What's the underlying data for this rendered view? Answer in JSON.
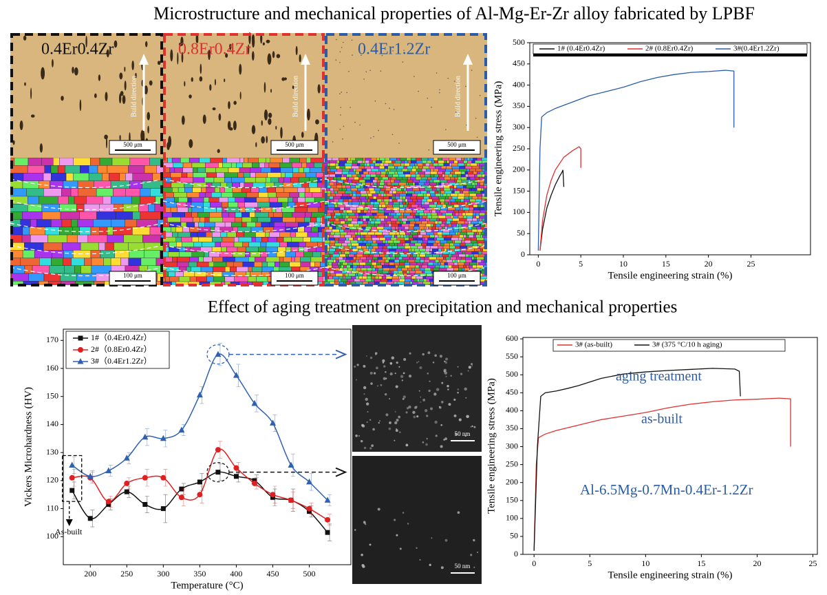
{
  "titles": [
    "Microstructure and mechanical properties of Al-Mg-Er-Zr alloy fabricated by LPBF",
    "Effect of aging  treatment on precipitation and mechanical properties"
  ],
  "micrographs": [
    {
      "label": "0.4Er0.4Zr",
      "build_direction": "Build direction",
      "scale_optical": "500 μm",
      "scale_ebsd": "100 μm"
    },
    {
      "label": "0.8Er0.4Zr",
      "build_direction": "Build direction",
      "scale_optical": "500 μm",
      "scale_ebsd": "100 μm"
    },
    {
      "label": "0.4Er1.2Zr",
      "build_direction": "Build direction",
      "scale_optical": "500 μm",
      "scale_ebsd": "100 μm"
    }
  ],
  "tem": [
    {
      "scale": "50 nm"
    },
    {
      "scale": "50 nm"
    }
  ],
  "chart_data": [
    {
      "type": "line",
      "xlabel": "Tensile engineering strain (%)",
      "ylabel": "Tensile engineering stress (MPa)",
      "xlim": [
        -1,
        32
      ],
      "ylim": [
        0,
        500
      ],
      "xticks": [
        0,
        5,
        10,
        15,
        20,
        25
      ],
      "yticks": [
        0,
        50,
        100,
        150,
        200,
        250,
        300,
        350,
        400,
        450,
        500
      ],
      "series": [
        {
          "name": "1# (0.4Er0.4Zr)",
          "color": "#111111",
          "x": [
            0.2,
            0.5,
            1,
            1.5,
            2,
            2.5,
            2.8,
            2.9,
            3
          ],
          "values": [
            10,
            60,
            110,
            140,
            165,
            185,
            195,
            200,
            160
          ]
        },
        {
          "name": "2# (0.8Er0.4Zr)",
          "color": "#e03030",
          "x": [
            0.2,
            0.5,
            1,
            1.5,
            2,
            3,
            4,
            4.8,
            5,
            5
          ],
          "values": [
            10,
            80,
            140,
            175,
            200,
            230,
            245,
            255,
            250,
            205
          ]
        },
        {
          "name": "3#(0.4Er1.2Zr)",
          "color": "#2b5ca8",
          "x": [
            0,
            0.2,
            0.4,
            1,
            2,
            4,
            6,
            8,
            10,
            12,
            14,
            16,
            18,
            20,
            22,
            23,
            23
          ],
          "values": [
            10,
            250,
            325,
            335,
            345,
            360,
            375,
            385,
            395,
            408,
            418,
            425,
            430,
            432,
            435,
            433,
            300
          ]
        }
      ]
    },
    {
      "type": "line",
      "smooth": true,
      "xlabel": "Temperature (°C)",
      "ylabel": "Vickers Microhardness (HV)",
      "xlim": [
        163,
        557
      ],
      "ylim": [
        90,
        174
      ],
      "xticks": [
        200,
        250,
        300,
        350,
        400,
        450,
        500
      ],
      "yticks": [
        100,
        110,
        120,
        130,
        140,
        150,
        160,
        170
      ],
      "x": [
        175,
        200,
        225,
        250,
        275,
        300,
        325,
        350,
        375,
        400,
        425,
        450,
        475,
        500,
        525
      ],
      "annotations": [
        "As-built"
      ],
      "series": [
        {
          "name": "1#（0.4Er0.4Zr）",
          "color": "#111111",
          "marker": "square",
          "values": [
            116.5,
            106.5,
            111.5,
            116,
            111.5,
            110,
            117,
            119.5,
            123,
            121.5,
            120,
            114,
            113,
            109,
            101.5
          ],
          "errors": [
            3,
            3,
            2,
            2,
            3,
            5,
            2,
            3,
            3,
            2,
            2,
            3,
            4,
            2,
            3
          ]
        },
        {
          "name": "2#（0.8Er0.4Zr）",
          "color": "#e02020",
          "marker": "circle",
          "values": [
            121,
            121,
            112.5,
            119,
            121,
            121,
            114,
            115,
            131,
            124.5,
            119,
            115,
            113,
            110,
            106
          ],
          "errors": [
            3,
            2,
            2,
            2,
            3,
            3,
            3,
            3,
            3,
            2,
            2,
            3,
            3,
            2,
            2
          ]
        },
        {
          "name": "3#（0.4Er1.2Zr）",
          "color": "#3060b0",
          "marker": "triangle",
          "values": [
            125.5,
            121.5,
            123.5,
            128,
            135.5,
            135,
            138,
            150.5,
            165,
            157.5,
            147.5,
            140.5,
            125.5,
            119.5,
            113
          ],
          "errors": [
            3,
            2,
            2,
            2,
            3,
            3,
            2,
            3,
            4,
            4,
            3,
            3,
            4,
            3,
            2
          ]
        }
      ]
    },
    {
      "type": "line",
      "xlabel": "Tensile engineering strain (%)",
      "ylabel": "Tensile engineering stress (MPa)",
      "xlim": [
        -1,
        25.4
      ],
      "ylim": [
        0,
        604
      ],
      "xticks": [
        0,
        5,
        10,
        15,
        20,
        25
      ],
      "yticks": [
        0,
        50,
        100,
        150,
        200,
        250,
        300,
        350,
        400,
        450,
        500,
        550,
        600
      ],
      "annotations": [
        "aging treatment",
        "as-built",
        "Al-6.5Mg-0.7Mn-0.4Er-1.2Zr"
      ],
      "series": [
        {
          "name": "3# (as-built)",
          "color": "#e03030",
          "x": [
            0,
            0.2,
            0.4,
            1,
            2,
            4,
            6,
            8,
            10,
            12,
            14,
            16,
            18,
            20,
            22,
            23,
            23
          ],
          "values": [
            10,
            250,
            325,
            335,
            345,
            360,
            375,
            385,
            395,
            408,
            418,
            425,
            430,
            432,
            435,
            433,
            300
          ]
        },
        {
          "name": "3# (375 °C/10 h aging)",
          "color": "#111111",
          "x": [
            0,
            0.3,
            0.6,
            1,
            2,
            3,
            4,
            6,
            8,
            10,
            12,
            14,
            16,
            18,
            18.4,
            18.5
          ],
          "values": [
            10,
            300,
            440,
            450,
            455,
            462,
            470,
            490,
            502,
            508,
            512,
            515,
            518,
            516,
            510,
            440
          ]
        }
      ]
    }
  ]
}
